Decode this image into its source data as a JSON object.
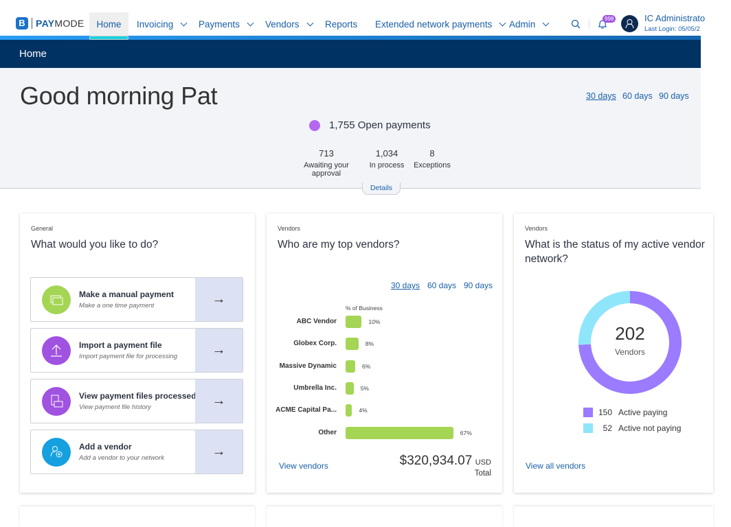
{
  "header": {
    "logo": "PAYMODE",
    "logo_mark": "B",
    "nav": [
      {
        "label": "Home",
        "active": true
      },
      {
        "label": "Invoicing",
        "dropdown": true
      },
      {
        "label": "Payments",
        "dropdown": true
      },
      {
        "label": "Vendors",
        "dropdown": true
      },
      {
        "label": "Reports"
      },
      {
        "label": "Extended network payments",
        "dropdown": true
      },
      {
        "label": "Admin",
        "dropdown": true
      }
    ],
    "notifications": "998",
    "user": "IC Administrato",
    "last_login": "Last Login: 05/05/2"
  },
  "breadcrumb": "Home",
  "hero": {
    "greeting": "Good morning Pat",
    "ranges": [
      "30 days",
      "60 days",
      "90 days"
    ],
    "selected_range": "30 days",
    "open_payments": "1,755 Open payments",
    "stats": [
      {
        "value": "713",
        "label": "Awaiting your approval"
      },
      {
        "value": "1,034",
        "label": "In process"
      },
      {
        "value": "8",
        "label": "Exceptions"
      }
    ],
    "details": "Details"
  },
  "actions_card": {
    "category": "General",
    "title": "What would you like to do?",
    "items": [
      {
        "title": "Make a manual payment",
        "subtitle": "Make a one time payment",
        "icon": "money-icon",
        "color": "#a4d555"
      },
      {
        "title": "Import a payment file",
        "subtitle": "Import payment file for processing",
        "icon": "upload-icon",
        "color": "#a052e0"
      },
      {
        "title": "View payment files processed",
        "subtitle": "View payment file history",
        "icon": "files-icon",
        "color": "#a052e0"
      },
      {
        "title": "Add a vendor",
        "subtitle": "Add a vendor to your network",
        "icon": "add-user-icon",
        "color": "#15a0e0"
      }
    ]
  },
  "vendors_card": {
    "category": "Vendors",
    "title": "Who are my top vendors?",
    "ranges": [
      "30 days",
      "60 days",
      "90 days"
    ],
    "selected_range": "30 days",
    "link": "View vendors",
    "total": "$320,934.07",
    "currency": "USD",
    "total_label": "Total",
    "chart_data": {
      "type": "bar",
      "orientation": "horizontal",
      "xlabel": "% of Business",
      "categories": [
        "ABC Vendor",
        "Globex Corp.",
        "Massive Dynamic",
        "Umbrella Inc.",
        "ACME Capital Pa...",
        "Other"
      ],
      "values": [
        10,
        8,
        6,
        5,
        4,
        67
      ],
      "labels": [
        "10%",
        "8%",
        "6%",
        "5%",
        "4%",
        "67%"
      ],
      "color": "#a4d555"
    }
  },
  "network_card": {
    "category": "Vendors",
    "title": "What is the status of my active vendor network?",
    "link": "View all vendors",
    "center_value": "202",
    "center_label": "Vendors",
    "chart_data": {
      "type": "pie",
      "donut": true,
      "series": [
        {
          "name": "Active paying",
          "value": 150,
          "color": "#9b7bff"
        },
        {
          "name": "Active not paying",
          "value": 52,
          "color": "#8fe6fb"
        }
      ]
    }
  }
}
